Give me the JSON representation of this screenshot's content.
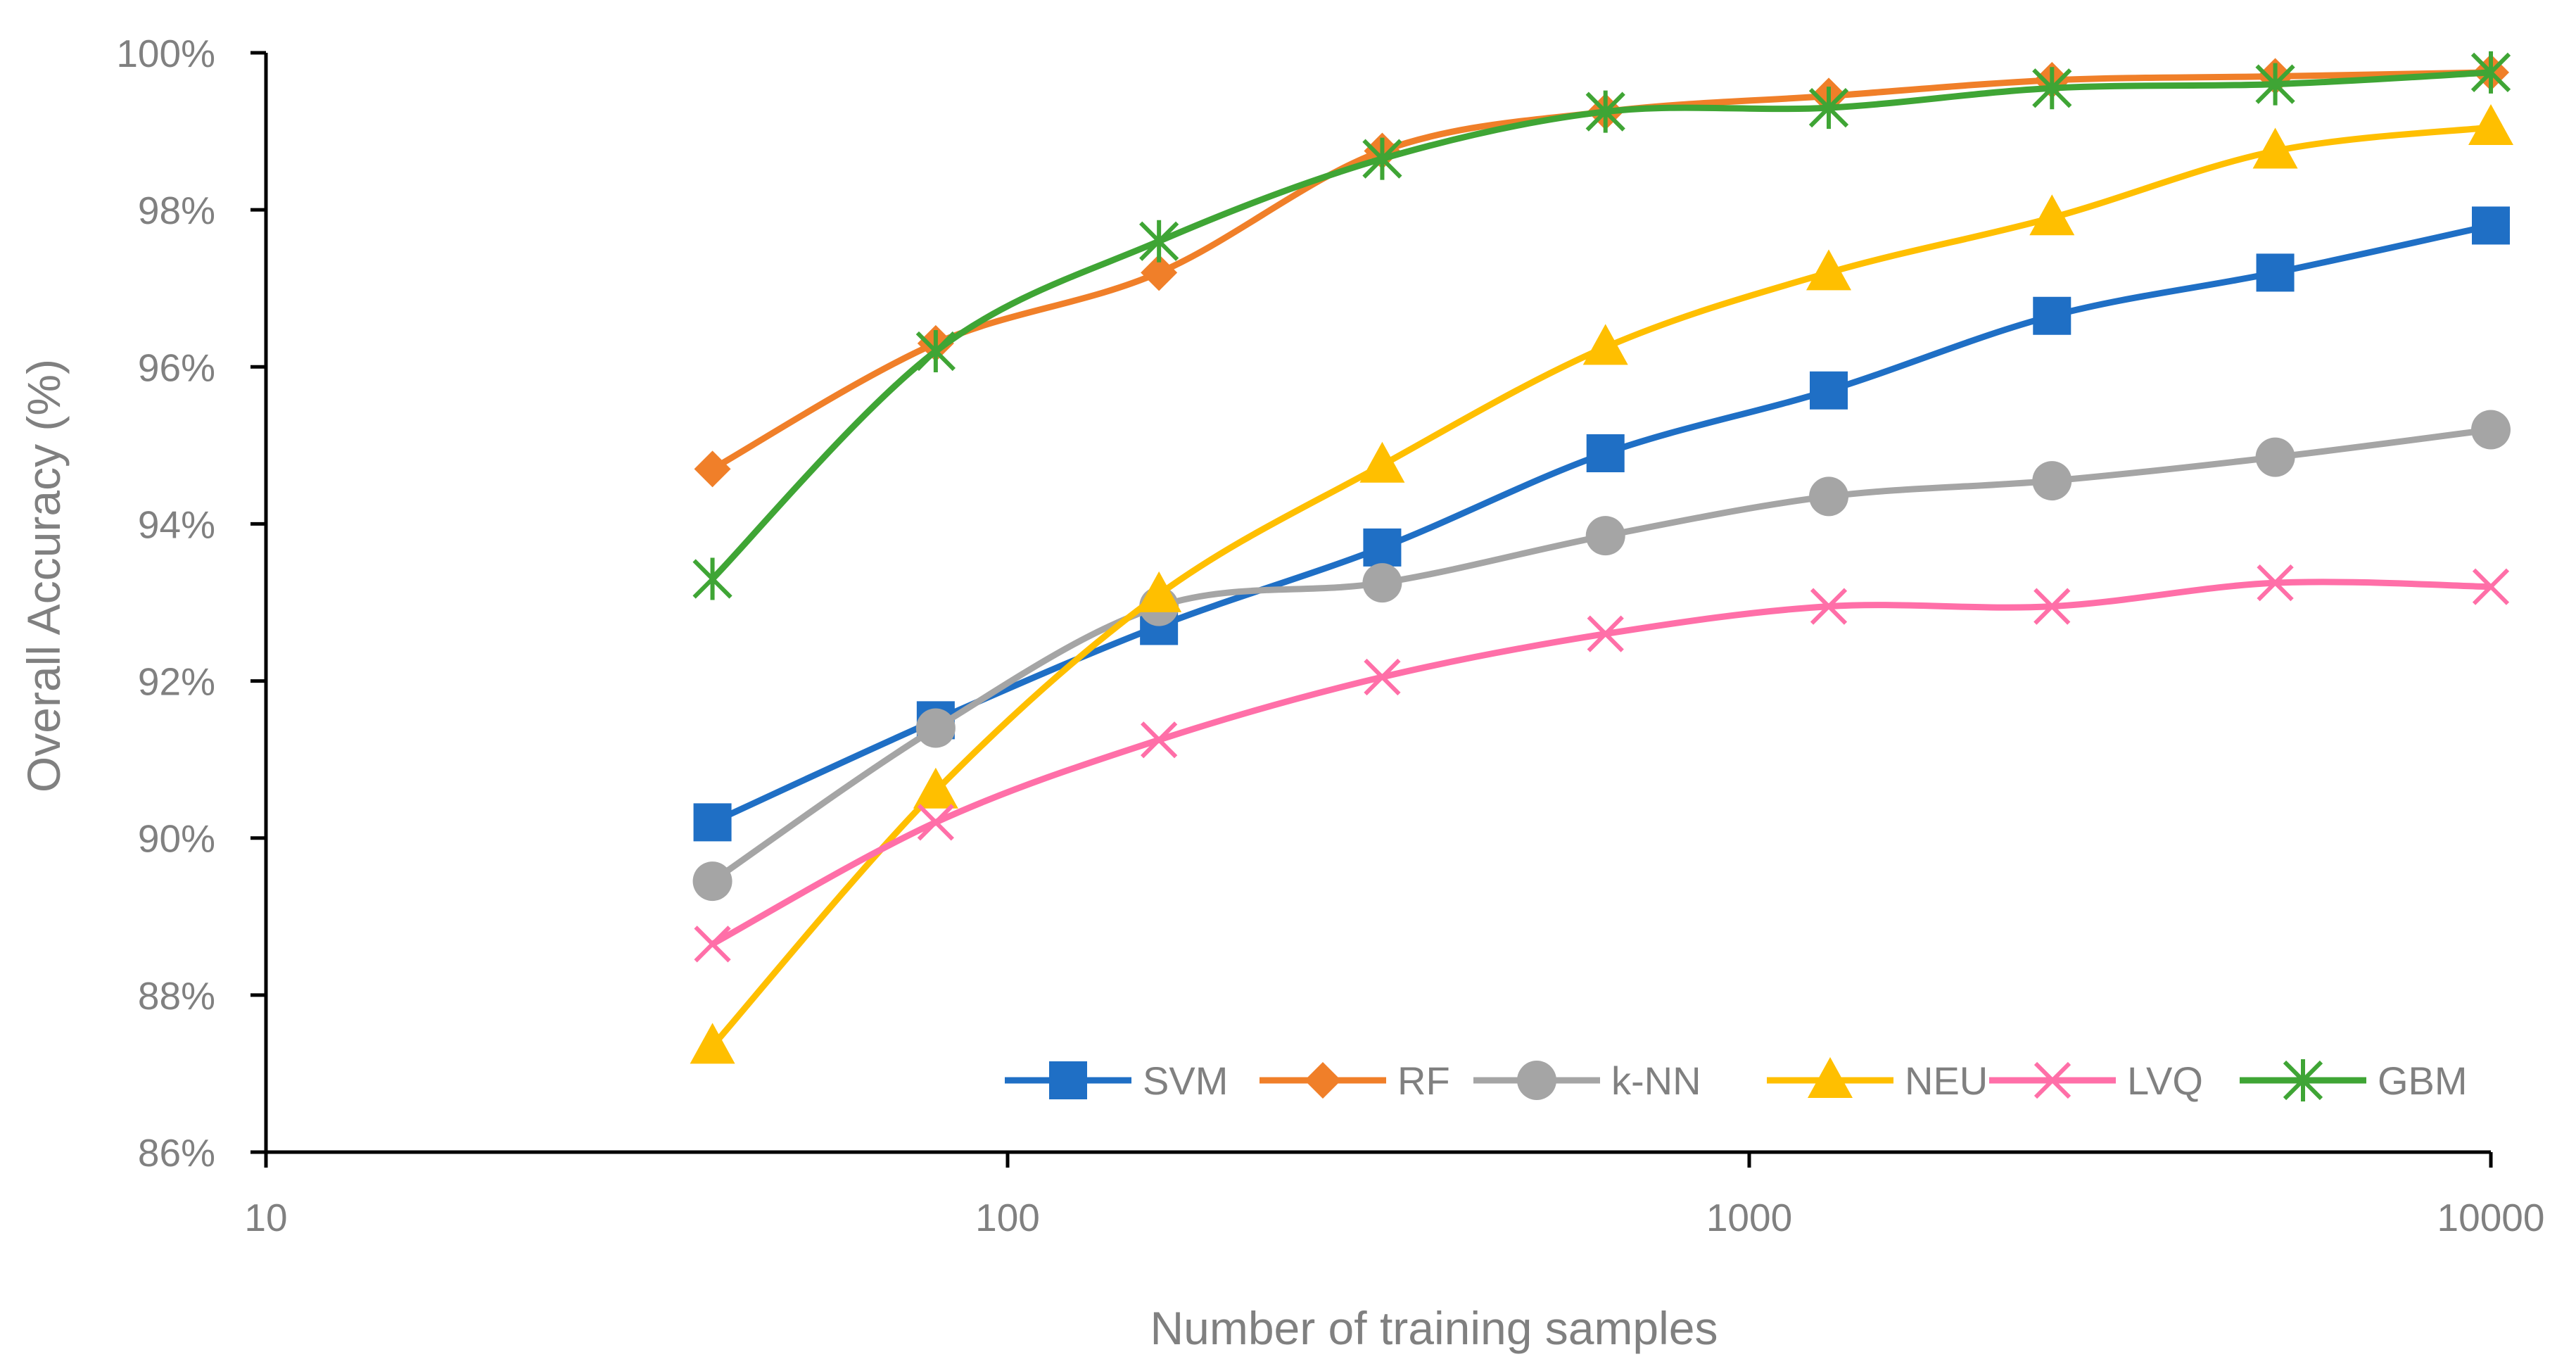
{
  "chart_data": {
    "type": "line",
    "title": "",
    "xlabel": "Number of training samples",
    "ylabel": "Overall Accuracy (%)",
    "xscale": "log",
    "xlim": [
      10,
      10000
    ],
    "ylim": [
      86,
      100
    ],
    "x_ticks": [
      "10",
      "100",
      "1000",
      "10000"
    ],
    "y_ticks": [
      "86%",
      "88%",
      "90%",
      "92%",
      "94%",
      "96%",
      "98%",
      "100%"
    ],
    "grid": false,
    "legend_position": "bottom-right",
    "x": [
      40,
      80,
      160,
      320,
      640,
      1280,
      2560,
      5120,
      10000
    ],
    "series": [
      {
        "name": "SVM",
        "color": "#1F6FC5",
        "marker": "square",
        "values": [
          90.2,
          91.5,
          92.7,
          93.7,
          94.9,
          95.7,
          96.65,
          97.2,
          97.8
        ]
      },
      {
        "name": "RF",
        "color": "#F07F29",
        "marker": "diamond",
        "values": [
          94.7,
          96.3,
          97.2,
          98.75,
          99.25,
          99.45,
          99.65,
          99.7,
          99.75
        ]
      },
      {
        "name": "k-NN",
        "color": "#A5A5A5",
        "marker": "circle",
        "values": [
          89.45,
          91.4,
          92.95,
          93.25,
          93.85,
          94.35,
          94.55,
          94.85,
          95.2
        ]
      },
      {
        "name": "NEU",
        "color": "#FFBF00",
        "marker": "triangle",
        "values": [
          87.35,
          90.6,
          93.1,
          94.75,
          96.25,
          97.2,
          97.9,
          98.75,
          99.05
        ]
      },
      {
        "name": "LVQ",
        "color": "#FF6FA8",
        "marker": "x",
        "values": [
          88.65,
          90.2,
          91.25,
          92.05,
          92.6,
          92.95,
          92.95,
          93.25,
          93.2
        ]
      },
      {
        "name": "GBM",
        "color": "#3FA535",
        "marker": "asterisk",
        "values": [
          93.3,
          96.2,
          97.6,
          98.65,
          99.25,
          99.3,
          99.55,
          99.6,
          99.75
        ]
      }
    ]
  }
}
